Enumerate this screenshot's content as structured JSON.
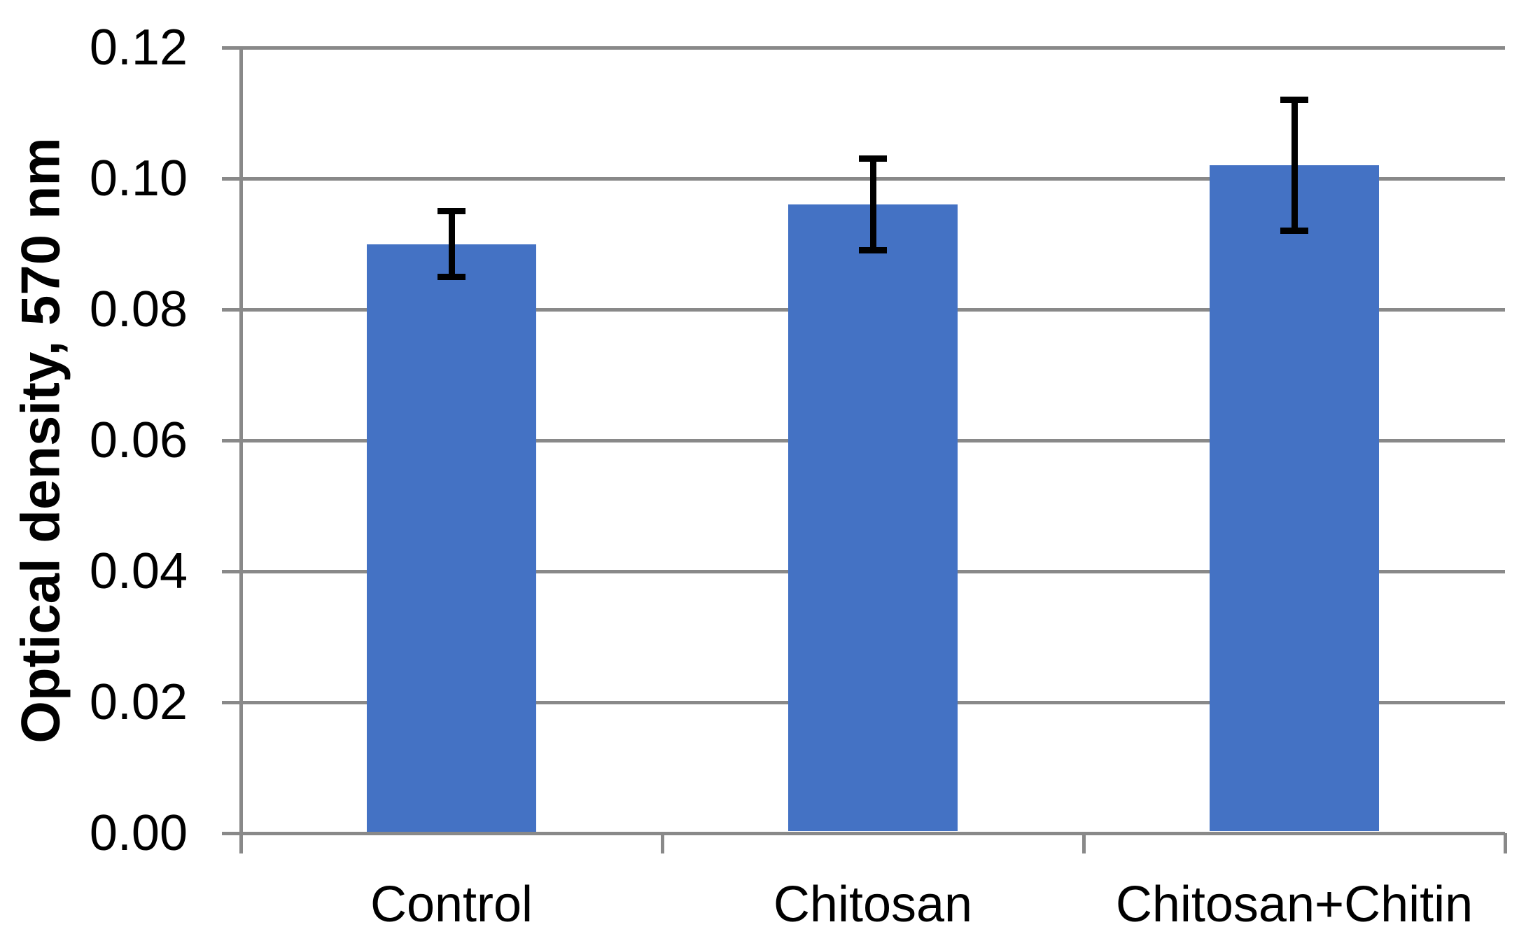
{
  "chart_data": {
    "type": "bar",
    "title": "",
    "categories": [
      "Control",
      "Chitosan",
      "Chitosan+Chitin"
    ],
    "values": [
      0.09,
      0.096,
      0.102
    ],
    "errors": [
      0.005,
      0.007,
      0.01
    ],
    "xlabel": "",
    "ylabel": "Optical density, 570 nm",
    "ylim": [
      0.0,
      0.12
    ],
    "ytick_step": 0.02,
    "ytick_labels": [
      "0.00",
      "0.02",
      "0.04",
      "0.06",
      "0.08",
      "0.10",
      "0.12"
    ],
    "grid": true,
    "legend": false,
    "colors": {
      "bar": "#4472C4",
      "grid": "#898989",
      "axis": "#898989",
      "error_bar": "#000000",
      "text": "#000000",
      "background": "#FFFFFF"
    }
  }
}
